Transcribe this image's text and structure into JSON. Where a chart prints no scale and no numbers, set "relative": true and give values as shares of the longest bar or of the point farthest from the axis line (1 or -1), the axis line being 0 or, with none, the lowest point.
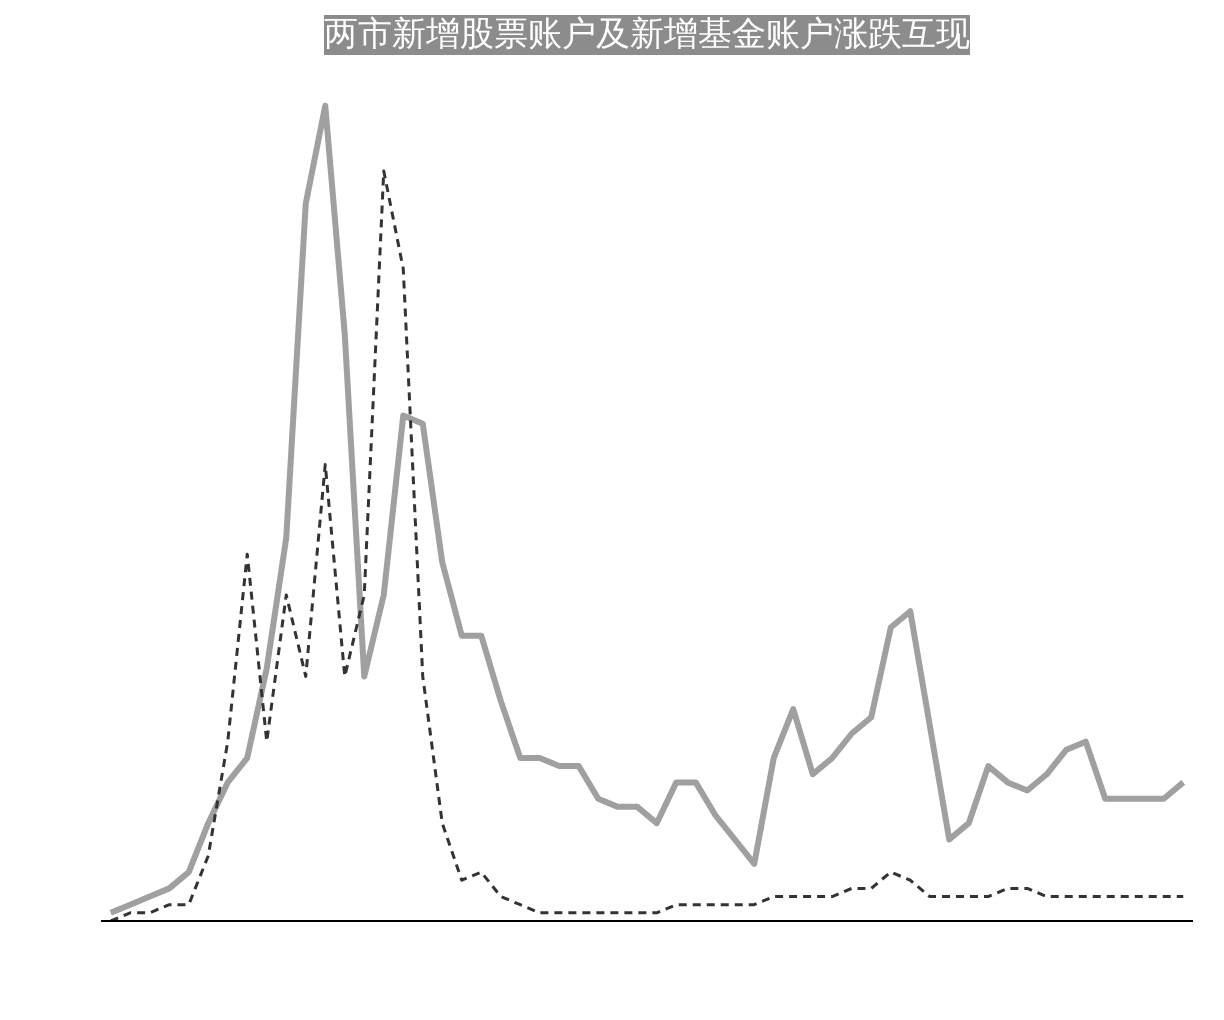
{
  "chart_data": {
    "type": "line",
    "title": "两市新增股票账户及新增基金账户涨跌互现",
    "relative": true,
    "grid": false,
    "categories": [
      null,
      null,
      null,
      null,
      null,
      null,
      null,
      null,
      null,
      null,
      null,
      null,
      null,
      null,
      null,
      null,
      null,
      null,
      null,
      null,
      null,
      null,
      null,
      null,
      null,
      null,
      null,
      null,
      null,
      null,
      null,
      null,
      null,
      null,
      null,
      null,
      null,
      null,
      null,
      null,
      null,
      null,
      null,
      null,
      null,
      null,
      null,
      null,
      null,
      null,
      null,
      null,
      null,
      null,
      null,
      null
    ],
    "series": [
      {
        "color": "#a0a0a0",
        "line_style": "solid",
        "values": [
          0.01,
          0.02,
          0.03,
          0.04,
          0.06,
          0.12,
          0.17,
          0.2,
          0.31,
          0.47,
          0.88,
          1.0,
          0.72,
          0.3,
          0.4,
          0.62,
          0.61,
          0.44,
          0.35,
          0.35,
          0.27,
          0.2,
          0.2,
          0.19,
          0.19,
          0.15,
          0.14,
          0.14,
          0.12,
          0.17,
          0.17,
          0.13,
          0.1,
          0.07,
          0.2,
          0.26,
          0.18,
          0.2,
          0.23,
          0.25,
          0.36,
          0.38,
          0.24,
          0.1,
          0.12,
          0.19,
          0.17,
          0.16,
          0.18,
          0.21,
          0.22,
          0.15,
          0.15,
          0.15,
          0.15,
          0.17
        ]
      },
      {
        "color": "#333333",
        "line_style": "dashed",
        "values": [
          0,
          0.01,
          0.01,
          0.02,
          0.02,
          0.08,
          0.22,
          0.45,
          0.22,
          0.4,
          0.3,
          0.56,
          0.3,
          0.4,
          0.92,
          0.8,
          0.3,
          0.12,
          0.05,
          0.06,
          0.03,
          0.02,
          0.01,
          0.01,
          0.01,
          0.01,
          0.01,
          0.01,
          0.01,
          0.02,
          0.02,
          0.02,
          0.02,
          0.02,
          0.03,
          0.03,
          0.03,
          0.03,
          0.04,
          0.04,
          0.06,
          0.05,
          0.03,
          0.03,
          0.03,
          0.03,
          0.04,
          0.04,
          0.03,
          0.03,
          0.03,
          0.03,
          0.03,
          0.03,
          0.03,
          0.03
        ]
      }
    ]
  }
}
